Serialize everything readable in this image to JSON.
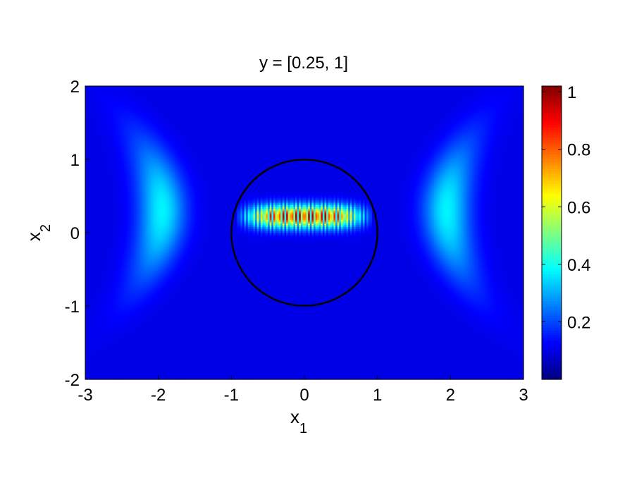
{
  "chart_data": {
    "type": "heatmap",
    "title": "y = [0.25, 1]",
    "xlabel": {
      "base": "x",
      "sub": "1"
    },
    "ylabel": {
      "base": "x",
      "sub": "2"
    },
    "xlim": [
      -3,
      3
    ],
    "ylim": [
      -2,
      2
    ],
    "xticks": [
      -3,
      -2,
      -1,
      0,
      1,
      2,
      3
    ],
    "yticks": [
      -2,
      -1,
      0,
      1,
      2
    ],
    "xtick_labels": [
      "-3",
      "-2",
      "-1",
      "0",
      "1",
      "2",
      "3"
    ],
    "ytick_labels": [
      "-2",
      "-1",
      "0",
      "1",
      "2"
    ],
    "colormap": "jet",
    "colorbar": {
      "range": [
        0,
        1.02
      ],
      "ticks": [
        0.2,
        0.4,
        0.6,
        0.8,
        1
      ],
      "tick_labels": [
        "0.2",
        "0.4",
        "0.6",
        "0.8",
        "1"
      ]
    },
    "features": [
      {
        "kind": "lobe",
        "center": [
          -1.95,
          0.3
        ],
        "peak": 0.3
      },
      {
        "kind": "lobe",
        "center": [
          1.95,
          0.3
        ],
        "peak": 0.3
      },
      {
        "kind": "fringe_band",
        "center": [
          0,
          0.22
        ],
        "x_halfwidth": 0.75,
        "peak": 1.0
      }
    ],
    "circle": {
      "center": [
        0,
        0
      ],
      "radius": 1,
      "color": "#000000"
    }
  }
}
